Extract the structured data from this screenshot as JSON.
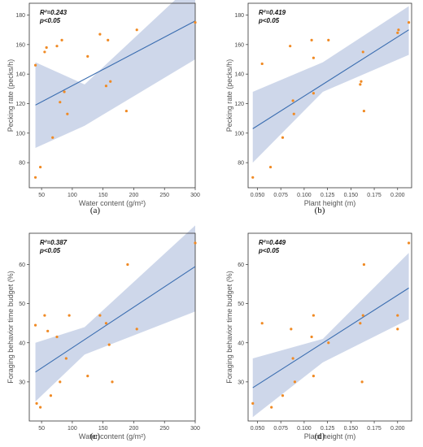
{
  "chart_data": [
    {
      "type": "scatter",
      "caption": "(a)",
      "xlabel": "Water content (g/m²)",
      "ylabel": "Pecking rate (pecks/h)",
      "xlim": [
        30,
        300
      ],
      "ylim": [
        63,
        188
      ],
      "xticks": [
        50,
        100,
        150,
        200,
        250,
        300
      ],
      "yticks": [
        80,
        100,
        120,
        140,
        160,
        180
      ],
      "stats": {
        "r2": "R²=0.243",
        "p": "p<0.05"
      },
      "points": [
        [
          40,
          146
        ],
        [
          40,
          70
        ],
        [
          48,
          77
        ],
        [
          55,
          155
        ],
        [
          58,
          158
        ],
        [
          68,
          97
        ],
        [
          75,
          159
        ],
        [
          80,
          121
        ],
        [
          83,
          163
        ],
        [
          87,
          128
        ],
        [
          92,
          113
        ],
        [
          125,
          152
        ],
        [
          145,
          167
        ],
        [
          155,
          132
        ],
        [
          158,
          163
        ],
        [
          162,
          135
        ],
        [
          188,
          115
        ],
        [
          205,
          170
        ],
        [
          300,
          175
        ]
      ],
      "fit": {
        "x": [
          40,
          300
        ],
        "y": [
          119,
          176
        ]
      },
      "band": {
        "x": [
          40,
          120,
          300
        ],
        "upper": [
          148,
          133,
          203
        ],
        "lower": [
          90,
          105,
          150
        ]
      },
      "grid": false
    },
    {
      "type": "scatter",
      "caption": "(b)",
      "xlabel": "Plant height (m)",
      "ylabel": "Pecking rate (pecks/h)",
      "xlim": [
        0.04,
        0.215
      ],
      "ylim": [
        63,
        188
      ],
      "xticks": [
        "0.050",
        "0.075",
        "0.100",
        "0.125",
        "0.150",
        "0.175",
        "0.200"
      ],
      "yticks": [
        80,
        100,
        120,
        140,
        160,
        180
      ],
      "stats": {
        "r2": "R²=0.419",
        "p": "p<0.05"
      },
      "points": [
        [
          0.045,
          70
        ],
        [
          0.055,
          147
        ],
        [
          0.064,
          77
        ],
        [
          0.077,
          97
        ],
        [
          0.085,
          159
        ],
        [
          0.088,
          122
        ],
        [
          0.089,
          113
        ],
        [
          0.108,
          163
        ],
        [
          0.11,
          127
        ],
        [
          0.11,
          151
        ],
        [
          0.126,
          163
        ],
        [
          0.16,
          133
        ],
        [
          0.161,
          135
        ],
        [
          0.163,
          155
        ],
        [
          0.164,
          115
        ],
        [
          0.2,
          168
        ],
        [
          0.201,
          170
        ],
        [
          0.212,
          175
        ]
      ],
      "fit": {
        "x": [
          0.045,
          0.212
        ],
        "y": [
          103,
          170
        ]
      },
      "band": {
        "x": [
          0.045,
          0.12,
          0.212
        ],
        "upper": [
          128,
          148,
          186
        ],
        "lower": [
          80,
          128,
          153
        ]
      },
      "grid": false
    },
    {
      "type": "scatter",
      "caption": "(c)",
      "xlabel": "Water content (g/m²)",
      "ylabel": "Foraging behavior time budget (%)",
      "xlim": [
        30,
        300
      ],
      "ylim": [
        20,
        68
      ],
      "xticks": [
        50,
        100,
        150,
        200,
        250,
        300
      ],
      "yticks": [
        30,
        40,
        50,
        60
      ],
      "stats": {
        "r2": "R²=0.387",
        "p": "p<0.05"
      },
      "points": [
        [
          40,
          44.5
        ],
        [
          42,
          24.5
        ],
        [
          48,
          23.5
        ],
        [
          55,
          47
        ],
        [
          60,
          43
        ],
        [
          65,
          26.5
        ],
        [
          75,
          41.5
        ],
        [
          80,
          30
        ],
        [
          90,
          36
        ],
        [
          95,
          47
        ],
        [
          125,
          31.5
        ],
        [
          145,
          47
        ],
        [
          155,
          45
        ],
        [
          160,
          39.5
        ],
        [
          165,
          30
        ],
        [
          190,
          60
        ],
        [
          205,
          43.5
        ],
        [
          300,
          65.5
        ]
      ],
      "fit": {
        "x": [
          40,
          300
        ],
        "y": [
          32.5,
          59.5
        ]
      },
      "band": {
        "x": [
          40,
          120,
          300
        ],
        "upper": [
          40,
          44,
          70
        ],
        "lower": [
          25,
          37,
          48
        ]
      },
      "grid": false
    },
    {
      "type": "scatter",
      "caption": "(d)",
      "xlabel": "Plant height (m)",
      "ylabel": "Foraging behavior time budget (%)",
      "xlim": [
        0.04,
        0.215
      ],
      "ylim": [
        20,
        68
      ],
      "xticks": [
        "0.050",
        "0.075",
        "0.100",
        "0.125",
        "0.150",
        "0.175",
        "0.200"
      ],
      "yticks": [
        30,
        40,
        50,
        60
      ],
      "stats": {
        "r2": "R²=0.449",
        "p": "p<0.05"
      },
      "points": [
        [
          0.045,
          24.5
        ],
        [
          0.055,
          45
        ],
        [
          0.065,
          23.5
        ],
        [
          0.077,
          26.5
        ],
        [
          0.086,
          43.5
        ],
        [
          0.088,
          36
        ],
        [
          0.09,
          30
        ],
        [
          0.108,
          41.5
        ],
        [
          0.11,
          47
        ],
        [
          0.11,
          31.5
        ],
        [
          0.126,
          40
        ],
        [
          0.16,
          45
        ],
        [
          0.162,
          30
        ],
        [
          0.163,
          47
        ],
        [
          0.164,
          60
        ],
        [
          0.2,
          47
        ],
        [
          0.2,
          43.5
        ],
        [
          0.212,
          65.5
        ]
      ],
      "fit": {
        "x": [
          0.045,
          0.212
        ],
        "y": [
          28.5,
          54
        ]
      },
      "band": {
        "x": [
          0.045,
          0.12,
          0.212
        ],
        "upper": [
          36,
          41,
          63
        ],
        "lower": [
          21,
          35,
          46
        ]
      },
      "grid": false
    }
  ],
  "colors": {
    "point": "#f08a24",
    "fit": "#3a6db0",
    "band": "#c5d0e6",
    "axis": "#333333"
  }
}
